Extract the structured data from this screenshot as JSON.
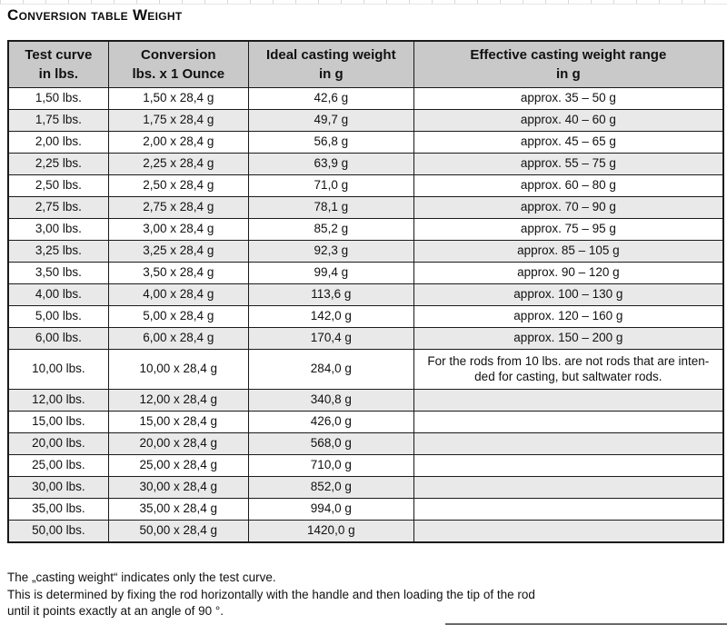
{
  "page": {
    "title": "Conversion table Weight"
  },
  "table": {
    "headers": [
      {
        "line1": "Test curve",
        "line2": "in lbs."
      },
      {
        "line1": "Conversion",
        "line2": "lbs. x 1 Ounce"
      },
      {
        "line1": "Ideal casting weight",
        "line2": "in g"
      },
      {
        "line1": "Effective casting weight range",
        "line2": "in g"
      }
    ],
    "rows": [
      [
        "1,50 lbs.",
        "1,50 x 28,4 g",
        "42,6 g",
        "approx. 35 – 50 g"
      ],
      [
        "1,75 lbs.",
        "1,75 x 28,4 g",
        "49,7 g",
        "approx. 40 – 60 g"
      ],
      [
        "2,00 lbs.",
        "2,00 x 28,4 g",
        "56,8 g",
        "approx. 45 – 65 g"
      ],
      [
        "2,25 lbs.",
        "2,25 x 28,4 g",
        "63,9 g",
        "approx. 55 – 75 g"
      ],
      [
        "2,50 lbs.",
        "2,50 x 28,4 g",
        "71,0 g",
        "approx. 60 – 80 g"
      ],
      [
        "2,75 lbs.",
        "2,75 x 28,4 g",
        "78,1 g",
        "approx. 70 – 90 g"
      ],
      [
        "3,00 lbs.",
        "3,00 x 28,4 g",
        "85,2 g",
        "approx. 75 – 95 g"
      ],
      [
        "3,25 lbs.",
        "3,25 x 28,4 g",
        "92,3 g",
        "approx. 85 – 105 g"
      ],
      [
        "3,50 lbs.",
        "3,50 x 28,4 g",
        "99,4 g",
        "approx. 90 – 120 g"
      ],
      [
        "4,00 lbs.",
        "4,00 x 28,4 g",
        "113,6 g",
        "approx. 100 – 130 g"
      ],
      [
        "5,00 lbs.",
        "5,00 x 28,4 g",
        "142,0 g",
        "approx. 120 – 160 g"
      ],
      [
        "6,00 lbs.",
        "6,00 x 28,4 g",
        "170,4 g",
        "approx. 150 – 200 g"
      ],
      [
        "10,00 lbs.",
        "10,00 x 28,4 g",
        "284,0 g",
        "For the rods from 10 lbs. are not rods that are inten-\nded for casting, but saltwater rods."
      ],
      [
        "12,00 lbs.",
        "12,00 x 28,4 g",
        "340,8 g",
        ""
      ],
      [
        "15,00 lbs.",
        "15,00 x 28,4 g",
        "426,0 g",
        ""
      ],
      [
        "20,00 lbs.",
        "20,00 x 28,4 g",
        "568,0 g",
        ""
      ],
      [
        "25,00 lbs.",
        "25,00 x 28,4 g",
        "710,0 g",
        ""
      ],
      [
        "30,00 lbs.",
        "30,00 x 28,4 g",
        "852,0 g",
        ""
      ],
      [
        "35,00 lbs.",
        "35,00 x 28,4 g",
        "994,0 g",
        ""
      ],
      [
        "50,00 lbs.",
        "50,00 x 28,4 g",
        "1420,0 g",
        ""
      ]
    ],
    "note_row_index": 12
  },
  "footer": {
    "lines": [
      "The „casting weight“ indicates only the test curve.",
      "This is determined by fixing the rod horizontally with the handle and then loading the tip of the rod",
      "until it points exactly at an angle of 90 °."
    ]
  }
}
